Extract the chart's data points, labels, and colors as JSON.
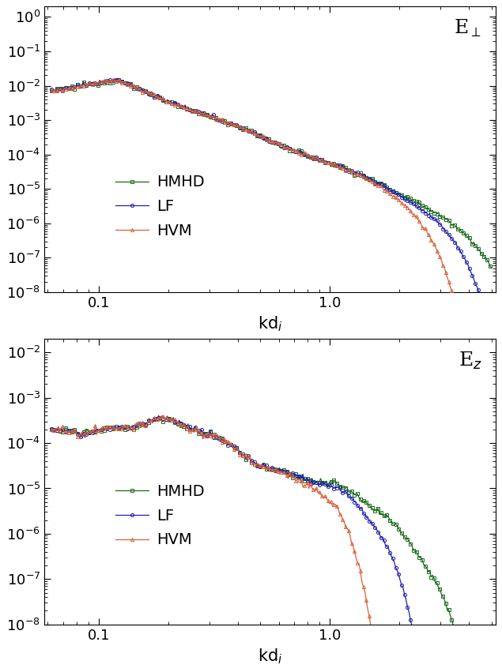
{
  "colors": {
    "HVM": "#d9623b",
    "LF": "#2020aa",
    "HMHD": "#1a6b1a"
  },
  "marker_HVM": "^",
  "marker_LF": "o",
  "marker_HMHD": "s",
  "xlim": [
    0.058,
    5.2
  ],
  "ylim1": [
    1e-08,
    2.0
  ],
  "ylim2": [
    1e-08,
    0.02
  ],
  "background_color": "#ffffff",
  "tick_label_size": 13,
  "legend_fontsize": 14,
  "axis_label_fontsize": 15
}
